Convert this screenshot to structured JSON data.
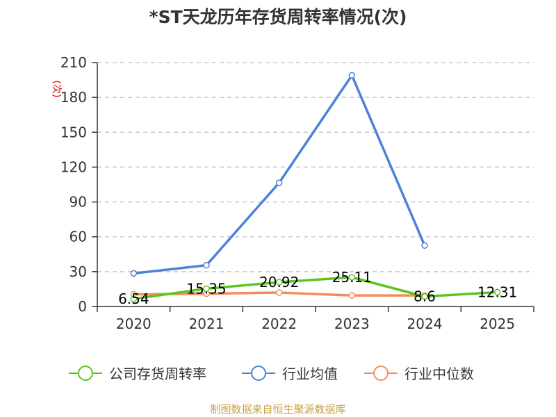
{
  "chart_data": {
    "type": "line",
    "title": "*ST天龙历年存货周转率情况(次)",
    "ylabel": "(次)",
    "xlabel": "",
    "categories": [
      "2020",
      "2021",
      "2022",
      "2023",
      "2024",
      "2025"
    ],
    "ylim": [
      0,
      210
    ],
    "yticks": [
      0,
      30,
      60,
      90,
      120,
      150,
      180,
      210
    ],
    "grid": true,
    "legend_position": "bottom",
    "series": [
      {
        "name": "公司存货周转率",
        "color": "#5bc51f",
        "values": [
          6.54,
          15.35,
          20.92,
          25.11,
          8.6,
          12.31
        ],
        "labels": [
          "6.54",
          "15.35",
          "20.92",
          "25.11",
          "8.6",
          "12.31"
        ]
      },
      {
        "name": "行业均值",
        "color": "#4e81d9",
        "values": [
          28.5,
          35.5,
          106.5,
          199.0,
          52.5,
          null
        ]
      },
      {
        "name": "行业中位数",
        "color": "#f68c5b",
        "values": [
          10.5,
          11.0,
          12.0,
          9.5,
          9.5,
          null
        ]
      }
    ]
  },
  "source_text": "制图数据来自恒生聚源数据库"
}
